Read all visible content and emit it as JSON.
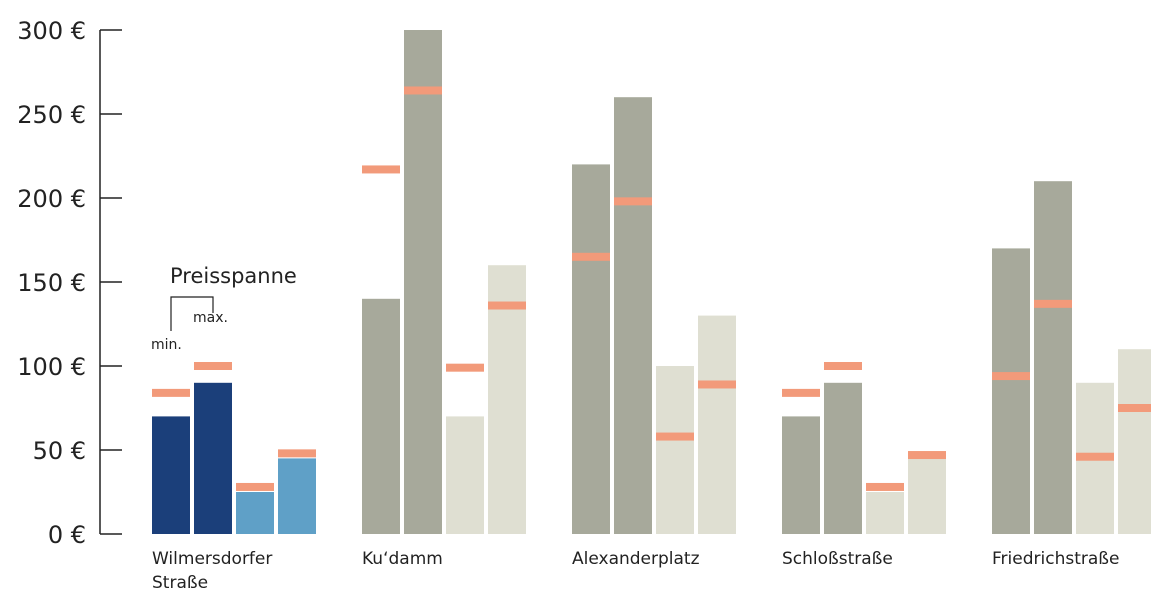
{
  "chart_data": {
    "type": "bar",
    "y_ticks": [
      "0 €",
      "50 €",
      "100 €",
      "150 €",
      "200 €",
      "250 €",
      "300 €"
    ],
    "ylim": [
      0,
      300
    ],
    "grid": false,
    "categories": [
      {
        "label_lines": [
          "Wilmersdorfer",
          "Straße"
        ],
        "bars": [
          {
            "kind": "min",
            "value": 70,
            "marker": 84
          },
          {
            "kind": "max",
            "value": 90,
            "marker": 100
          },
          {
            "kind": "min_alt",
            "value": 25,
            "marker": 28
          },
          {
            "kind": "max_alt",
            "value": 45,
            "marker": 48
          }
        ]
      },
      {
        "label_lines": [
          "Ku‘damm"
        ],
        "bars": [
          {
            "kind": "min",
            "value": 140,
            "marker": 217
          },
          {
            "kind": "max",
            "value": 300,
            "marker": 264
          },
          {
            "kind": "min_alt",
            "value": 70,
            "marker": 99
          },
          {
            "kind": "max_alt",
            "value": 160,
            "marker": 136
          }
        ]
      },
      {
        "label_lines": [
          "Alexanderplatz"
        ],
        "bars": [
          {
            "kind": "min",
            "value": 220,
            "marker": 165
          },
          {
            "kind": "max",
            "value": 260,
            "marker": 198
          },
          {
            "kind": "min_alt",
            "value": 100,
            "marker": 58
          },
          {
            "kind": "max_alt",
            "value": 130,
            "marker": 89
          }
        ]
      },
      {
        "label_lines": [
          "Schloßstraße"
        ],
        "bars": [
          {
            "kind": "min",
            "value": 70,
            "marker": 84
          },
          {
            "kind": "max",
            "value": 90,
            "marker": 100
          },
          {
            "kind": "min_alt",
            "value": 25,
            "marker": 28
          },
          {
            "kind": "max_alt",
            "value": 45,
            "marker": 47
          }
        ]
      },
      {
        "label_lines": [
          "Friedrichstraße"
        ],
        "bars": [
          {
            "kind": "min",
            "value": 170,
            "marker": 94
          },
          {
            "kind": "max",
            "value": 210,
            "marker": 137
          },
          {
            "kind": "min_alt",
            "value": 90,
            "marker": 46
          },
          {
            "kind": "max_alt",
            "value": 110,
            "marker": 75
          }
        ]
      }
    ],
    "annotation": {
      "title": "Preisspanne",
      "min_label": "min.",
      "max_label": "max."
    },
    "colors": {
      "highlight_min": "#1b3f7a",
      "highlight_max": "#1b3f7a",
      "highlight_alt": "#5fa0c7",
      "min": "#a7a99b",
      "max": "#a7a99b",
      "min_alt": "#dfdfd2",
      "max_alt": "#dfdfd2",
      "marker": "#f29a7a",
      "axis": "#222222"
    }
  }
}
